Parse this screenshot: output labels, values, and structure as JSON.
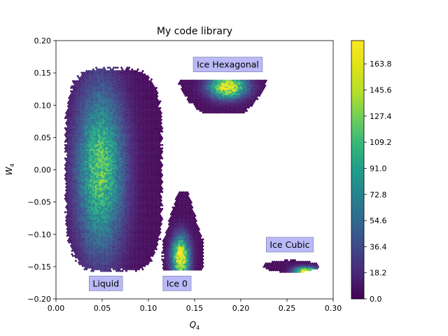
{
  "chart_data": {
    "type": "heatmap",
    "title": "My code library",
    "xlabel_main": "Q",
    "xlabel_sub": "4",
    "ylabel_main": "W",
    "ylabel_sub": "4",
    "xlim": [
      0.0,
      0.3
    ],
    "ylim": [
      -0.2,
      0.2
    ],
    "xticks": [
      "0.00",
      "0.05",
      "0.10",
      "0.15",
      "0.20",
      "0.25",
      "0.30"
    ],
    "xtick_values": [
      0.0,
      0.05,
      0.1,
      0.15,
      0.2,
      0.25,
      0.3
    ],
    "yticks": [
      "−0.20",
      "−0.15",
      "−0.10",
      "−0.05",
      "0.00",
      "0.05",
      "0.10",
      "0.15",
      "0.20"
    ],
    "ytick_values": [
      -0.2,
      -0.15,
      -0.1,
      -0.05,
      0.0,
      0.05,
      0.1,
      0.15,
      0.2
    ],
    "colorbar": {
      "range": [
        0.0,
        180.0
      ],
      "tick_values": [
        0.0,
        18.2,
        36.4,
        54.6,
        72.8,
        91.0,
        109.2,
        127.4,
        145.6,
        163.8
      ],
      "tick_labels": [
        "0.0",
        "18.2",
        "36.4",
        "54.6",
        "72.8",
        "91.0",
        "109.2",
        "127.4",
        "145.6",
        "163.8"
      ],
      "colormap": "viridis"
    },
    "regions": [
      {
        "name": "Liquid",
        "x_range": [
          0.01,
          0.115
        ],
        "y_range": [
          -0.157,
          0.158
        ],
        "peak_x": 0.048,
        "peak_y": 0.0,
        "peak_count": 120
      },
      {
        "name": "Ice 0",
        "x_range": [
          0.115,
          0.16
        ],
        "y_range": [
          -0.157,
          -0.035
        ],
        "peak_x": 0.135,
        "peak_y": -0.136,
        "peak_count": 175
      },
      {
        "name": "Ice Hexagonal",
        "x_range": [
          0.133,
          0.228
        ],
        "y_range": [
          0.086,
          0.138
        ],
        "peak_x": 0.186,
        "peak_y": 0.128,
        "peak_count": 170
      },
      {
        "name": "Ice Cubic",
        "x_range": [
          0.225,
          0.284
        ],
        "y_range": [
          -0.159,
          -0.14
        ],
        "peak_x": 0.27,
        "peak_y": -0.157,
        "peak_count": 172
      }
    ],
    "annotations": [
      {
        "text": "Liquid",
        "x": 0.054,
        "y": -0.176
      },
      {
        "text": "Ice 0",
        "x": 0.131,
        "y": -0.176
      },
      {
        "text": "Ice Hexagonal",
        "x": 0.186,
        "y": 0.163
      },
      {
        "text": "Ice Cubic",
        "x": 0.253,
        "y": -0.116
      }
    ],
    "annotation_box_color": "#b3b3f7",
    "grid": false,
    "legend": "colorbar-right"
  }
}
